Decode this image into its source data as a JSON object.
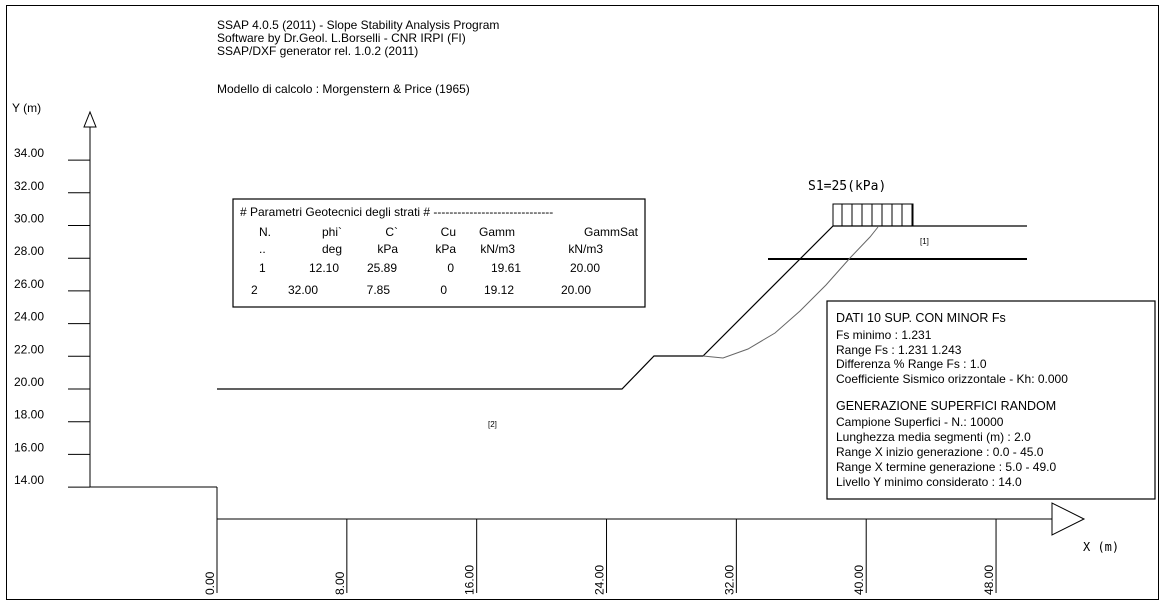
{
  "header": {
    "lines": [
      "SSAP 4.0.5 (2011) - Slope Stability Analysis Program",
      "Software by Dr.Geol. L.Borselli - CNR IRPI (FI)",
      "SSAP/DXF generator rel. 1.0.2 (2011)"
    ],
    "model": "Modello di calcolo : Morgenstern & Price (1965)"
  },
  "axes": {
    "y_label": "Y (m)",
    "x_label": "X (m)",
    "y_ticks": [
      "34.00",
      "32.00",
      "30.00",
      "28.00",
      "26.00",
      "24.00",
      "22.00",
      "20.00",
      "18.00",
      "16.00",
      "14.00"
    ],
    "x_ticks": [
      "0.00",
      "8.00",
      "16.00",
      "24.00",
      "32.00",
      "40.00",
      "48.00"
    ]
  },
  "load_label": "S1=25(kPa)",
  "strata_labels": [
    "[1]",
    "[2]"
  ],
  "geo_table": {
    "title": "# Parametri Geotecnici degli strati # ------------------------------",
    "headers": [
      "N.",
      "phi`",
      "C`",
      "Cu",
      "Gamm",
      "GammSat"
    ],
    "units": [
      "..",
      "deg",
      "kPa",
      "kPa",
      "kN/m3",
      "kN/m3"
    ],
    "rows": [
      [
        "1",
        "12.10",
        "25.89",
        "0",
        "19.61",
        "20.00"
      ],
      [
        "2",
        "32.00",
        "7.85",
        "0",
        "19.12",
        "20.00"
      ]
    ]
  },
  "results": {
    "title": "DATI 10 SUP. CON MINOR Fs",
    "lines": [
      "Fs minimo : 1.231",
      "Range Fs : 1.231  1.243",
      "Differenza % Range Fs : 1.0",
      "Coefficiente Sismico orizzontale  - Kh:  0.000"
    ],
    "gen_title": "GENERAZIONE SUPERFICI RANDOM",
    "gen_lines": [
      "Campione Superfici - N.:     10000",
      "Lunghezza media segmenti (m) : 2.0",
      "Range X inizio generazione :   0.0 -  45.0",
      "Range X termine generazione :  5.0 -  49.0",
      "Livello Y minimo considerato : 14.0"
    ]
  }
}
